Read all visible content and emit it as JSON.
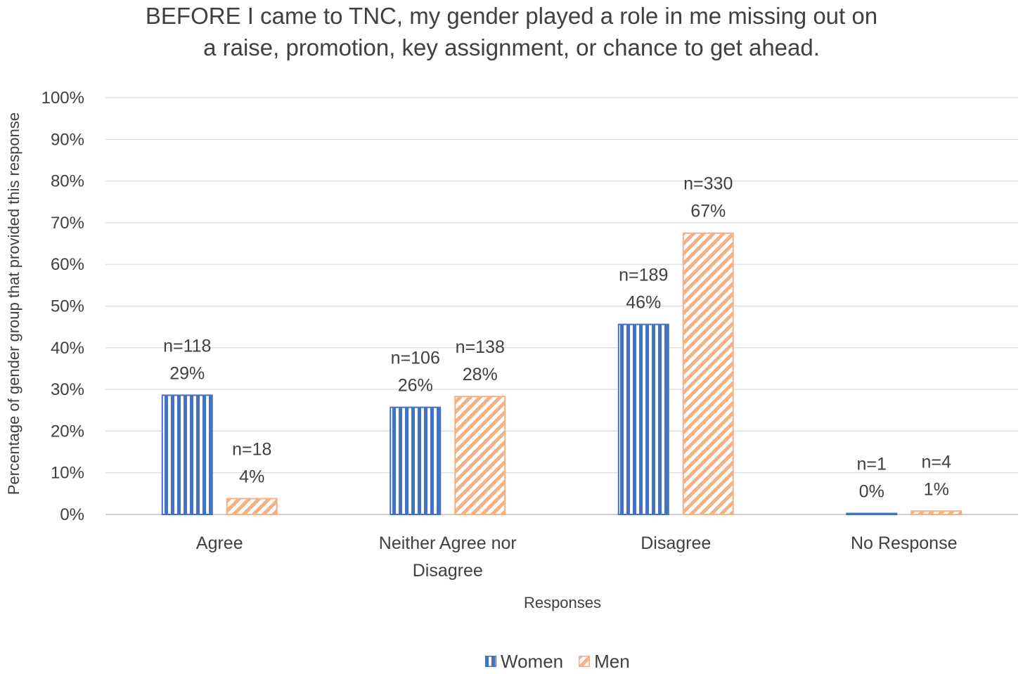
{
  "chart_data": {
    "type": "bar",
    "title_lines": [
      "BEFORE I came to TNC, my gender played a role in me missing out on",
      "a raise, promotion, key assignment, or chance to get ahead."
    ],
    "xlabel": "Responses",
    "ylabel": "Percentage of gender group that provided this response",
    "ylim": [
      0,
      100
    ],
    "yticks": [
      "0%",
      "10%",
      "20%",
      "30%",
      "40%",
      "50%",
      "60%",
      "70%",
      "80%",
      "90%",
      "100%"
    ],
    "grid": true,
    "legend_position": "bottom",
    "categories": [
      [
        "Agree"
      ],
      [
        "Neither Agree nor",
        "Disagree"
      ],
      [
        "Disagree"
      ],
      [
        "No Response"
      ]
    ],
    "series": [
      {
        "name": "Women",
        "color": "#4472C4",
        "pattern": "vertical-stripes",
        "values": [
          28.6,
          25.7,
          45.6,
          0.2
        ],
        "labels_n": [
          "n=118",
          "n=106",
          "n=189",
          "n=1"
        ],
        "labels_pct": [
          "29%",
          "26%",
          "46%",
          "0%"
        ]
      },
      {
        "name": "Men",
        "color": "#F4B183",
        "pattern": "diagonal-stripes",
        "values": [
          3.8,
          28.3,
          67.5,
          0.8
        ],
        "labels_n": [
          "n=18",
          "n=138",
          "n=330",
          "n=4"
        ],
        "labels_pct": [
          "4%",
          "28%",
          "67%",
          "1%"
        ]
      }
    ]
  }
}
